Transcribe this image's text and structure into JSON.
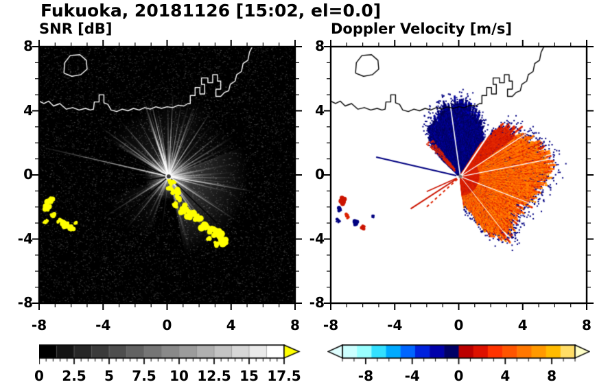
{
  "figure_title": "Fukuoka, 20181126 [15:02, el=0.0]",
  "header": {
    "station": "Fukuoka",
    "date": "20181126",
    "time": "15:02",
    "elevation": "0.0"
  },
  "chart_data": [
    {
      "type": "heatmap",
      "id": "snr",
      "title": "SNR [dB]",
      "description": "Radar PPI scan of signal-to-noise ratio in dB. Black background with white radial beams emanating from the radar at the origin; yellow patches are saturated echoes above 17.5 dB; white coastline of Fukuoka bay drawn across the upper half.",
      "xlim": [
        -8,
        8
      ],
      "ylim": [
        -8,
        8
      ],
      "xticks": [
        -8,
        -4,
        0,
        4,
        8
      ],
      "xtick_labels": [
        "-8",
        "-4",
        "0",
        "4",
        "8"
      ],
      "yticks": [
        -8,
        -4,
        0,
        4,
        8
      ],
      "ytick_labels": [
        "-8",
        "-4",
        "0",
        "4",
        "8"
      ],
      "minor_tick_step": 1,
      "background": "#000000",
      "coast_color": "#ffffff",
      "radar_center": [
        0.1,
        -0.1
      ],
      "colorbar": {
        "min": 0,
        "max": 17.5,
        "tick_values": [
          0,
          2.5,
          5,
          7.5,
          10,
          12.5,
          15,
          17.5
        ],
        "tick_labels": [
          "0",
          "2.5",
          "5",
          "7.5",
          "10",
          "12.5",
          "15",
          "17.5"
        ],
        "minor_step": 0.5,
        "over_arrow_color": "#ffff00",
        "colors": [
          "#000000",
          "#141414",
          "#272727",
          "#3b3b3b",
          "#4e4e4e",
          "#626262",
          "#757575",
          "#898989",
          "#9c9c9c",
          "#b0b0b0",
          "#c3c3c3",
          "#d7d7d7",
          "#eaeaea",
          "#ffffff"
        ]
      },
      "center_glow": {
        "r": 1.5,
        "alpha": 0.5
      },
      "glow_fan": {
        "from": -78,
        "to": 22,
        "r": 5.0,
        "alpha": 0.3
      },
      "haze_fans": [
        {
          "from": 95,
          "to": 150,
          "r": 4.5,
          "alpha": 0.14
        },
        {
          "from": 60,
          "to": 95,
          "r": 5.2,
          "alpha": 0.12
        },
        {
          "from": 20,
          "to": 60,
          "r": 4.6,
          "alpha": 0.1
        },
        {
          "from": 200,
          "to": 252,
          "r": 4.2,
          "alpha": 0.08
        }
      ],
      "beam_sectors": [
        {
          "from": 95,
          "to": 150,
          "count": 30,
          "rmin": 1.2,
          "rmax": 5.4,
          "alpha": 0.8
        },
        {
          "from": 60,
          "to": 95,
          "count": 16,
          "rmin": 1.2,
          "rmax": 6.0,
          "alpha": 0.65
        },
        {
          "from": 18,
          "to": 60,
          "count": 14,
          "rmin": 1.0,
          "rmax": 5.0,
          "alpha": 0.5
        },
        {
          "from": -75,
          "to": 18,
          "count": 34,
          "rmin": 1.2,
          "rmax": 5.4,
          "alpha": 0.7
        },
        {
          "from": 150,
          "to": 200,
          "count": 9,
          "rmin": 0.8,
          "rmax": 4.2,
          "alpha": 0.35
        },
        {
          "from": 200,
          "to": 268,
          "count": 12,
          "rmin": 0.8,
          "rmax": 4.6,
          "alpha": 0.4
        }
      ],
      "long_rays": [
        {
          "az": 167,
          "r": 8.3,
          "alpha": 0.95
        },
        {
          "az": 144,
          "r": 5.3,
          "alpha": 0.9
        },
        {
          "az": 131,
          "r": 4.6,
          "alpha": 0.85
        },
        {
          "az": 108,
          "r": 5.0,
          "alpha": 0.95
        },
        {
          "az": 87,
          "r": 5.3,
          "alpha": 0.9
        },
        {
          "az": 70,
          "r": 4.6,
          "alpha": 0.8
        },
        {
          "az": 57,
          "r": 5.0,
          "alpha": 0.85
        },
        {
          "az": 40,
          "r": 4.4,
          "alpha": 0.7
        },
        {
          "az": 212,
          "r": 4.8,
          "alpha": 0.6
        },
        {
          "az": 231,
          "r": 4.3,
          "alpha": 0.55
        },
        {
          "az": -10,
          "r": 5.6,
          "alpha": 0.9
        },
        {
          "az": -33,
          "r": 5.2,
          "alpha": 0.8
        },
        {
          "az": -56,
          "r": 4.9,
          "alpha": 0.8
        }
      ],
      "dark_rays": [
        {
          "az": 157,
          "r": 6.5
        },
        {
          "az": 189,
          "r": 5.2
        },
        {
          "az": -44,
          "r": 4.2
        },
        {
          "az": 222,
          "r": 4.0
        }
      ],
      "saturated_color": "#ffff00",
      "saturated_patches": [
        [
          0.35,
          -0.45,
          0.18
        ],
        [
          0.2,
          -0.8,
          0.2
        ],
        [
          0.5,
          -1.1,
          0.25
        ],
        [
          0.75,
          -1.45,
          0.22
        ],
        [
          0.55,
          -1.8,
          0.18
        ],
        [
          1.0,
          -2.1,
          0.28
        ],
        [
          1.45,
          -2.45,
          0.3
        ],
        [
          1.9,
          -2.75,
          0.26
        ],
        [
          2.35,
          -3.1,
          0.3
        ],
        [
          2.8,
          -3.35,
          0.28
        ],
        [
          3.2,
          -3.7,
          0.34
        ],
        [
          3.55,
          -4.15,
          0.3
        ],
        [
          3.1,
          -4.35,
          0.2
        ],
        [
          2.65,
          -3.95,
          0.16
        ],
        [
          -7.35,
          -1.6,
          0.28
        ],
        [
          -7.5,
          -2.1,
          0.22
        ],
        [
          -7.15,
          -2.5,
          0.2
        ],
        [
          -6.7,
          -2.9,
          0.16
        ],
        [
          -6.35,
          -3.1,
          0.26
        ],
        [
          -5.95,
          -3.35,
          0.2
        ],
        [
          -5.75,
          -2.95,
          0.13
        ],
        [
          -7.6,
          -2.9,
          0.14
        ]
      ]
    },
    {
      "type": "heatmap",
      "id": "doppler",
      "title": "Doppler Velocity [m/s]",
      "description": "Radar PPI scan of Doppler velocity in m/s on white background. Dark blue wedge of negative velocities north of the radar, red/orange region of positive velocities east and southeast reaching about +8 m/s; black coastline overlay; small red and blue echo patches at far left.",
      "xlim": [
        -8,
        8
      ],
      "ylim": [
        -8,
        8
      ],
      "xticks": [
        -8,
        -4,
        0,
        4,
        8
      ],
      "xtick_labels": [
        "-8",
        "-4",
        "0",
        "4",
        "8"
      ],
      "yticks": [
        -8,
        -4,
        0,
        4,
        8
      ],
      "ytick_labels": [
        "-8",
        "-4",
        "0",
        "4",
        "8"
      ],
      "minor_tick_step": 1,
      "background": "#ffffff",
      "coast_color": "#000000",
      "radar_center": [
        0.1,
        -0.1
      ],
      "colorbar": {
        "min": -10,
        "max": 10,
        "tick_values": [
          -8,
          -4,
          0,
          4,
          8
        ],
        "tick_labels": [
          "-8",
          "-4",
          "0",
          "4",
          "8"
        ],
        "minor_step": 1,
        "under_arrow_color": "#e0ffff",
        "over_arrow_color": "#ffffc8",
        "colors": [
          "#ccffff",
          "#99ffff",
          "#33e0ff",
          "#00aaff",
          "#0066ff",
          "#0022dd",
          "#0000aa",
          "#000066",
          "#bb0000",
          "#dd1100",
          "#ff3300",
          "#ff5500",
          "#ff7700",
          "#ff9900",
          "#ffbb00",
          "#ffdd66"
        ]
      },
      "blue_region": {
        "az_profile": [
          [
            54,
            2.2
          ],
          [
            64,
            3.0
          ],
          [
            75,
            3.9
          ],
          [
            85,
            4.4
          ],
          [
            95,
            4.4
          ],
          [
            105,
            4.1
          ],
          [
            115,
            3.8
          ],
          [
            125,
            3.4
          ],
          [
            132,
            2.6
          ],
          [
            137,
            1.5
          ]
        ],
        "colors": [
          "#000066",
          "#000080",
          "#00009b",
          "#000055"
        ],
        "rim_color": "#000080"
      },
      "red_region": {
        "az_profile": [
          [
            -84,
            1.4
          ],
          [
            -74,
            2.2
          ],
          [
            -64,
            3.8
          ],
          [
            -54,
            4.6
          ],
          [
            -44,
            4.4
          ],
          [
            -34,
            4.0
          ],
          [
            -22,
            4.2
          ],
          [
            -10,
            4.8
          ],
          [
            0,
            5.3
          ],
          [
            10,
            5.6
          ],
          [
            20,
            5.2
          ],
          [
            30,
            4.7
          ],
          [
            40,
            4.3
          ],
          [
            50,
            4.1
          ],
          [
            58,
            2.4
          ]
        ],
        "inner_colors": [
          "#cc1400",
          "#dd2200",
          "#e83000"
        ],
        "outer_colors": [
          "#ff6600",
          "#ff7d00",
          "#ff5500",
          "#ff8f00"
        ],
        "rim_color": "#000080"
      },
      "fringe": {
        "from": 127,
        "to": 136,
        "r": 3.0,
        "color": "#dd2200"
      },
      "white_gaps": [
        {
          "az": 56,
          "r": 3.4,
          "w": 2.2
        },
        {
          "az": 98,
          "r": 4.6,
          "w": 1.6
        },
        {
          "az": 11,
          "r": 5.7,
          "w": 1.4
        },
        {
          "az": -21,
          "r": 4.7,
          "w": 1.2
        },
        {
          "az": 33,
          "r": 5.0,
          "w": 1.2
        },
        {
          "az": -52,
          "r": 4.4,
          "w": 1.0
        }
      ],
      "lines": [
        {
          "az": 167,
          "r": 5.4,
          "color": "#000080",
          "width": 2
        },
        {
          "az": 213,
          "r": 3.7,
          "color": "#cc1400",
          "width": 2
        },
        {
          "az": 222,
          "r": 2.9,
          "color": "#dd2200",
          "width": 2,
          "dash": [
            4,
            4
          ]
        },
        {
          "az": 204,
          "r": 2.3,
          "color": "#cc1400",
          "width": 1.5
        }
      ],
      "patches": [
        [
          -7.3,
          -1.65,
          0.22,
          "#cc1400"
        ],
        [
          -7.45,
          -2.15,
          0.18,
          "#000080"
        ],
        [
          -7.0,
          -2.55,
          0.16,
          "#dd2200"
        ],
        [
          -6.4,
          -3.0,
          0.2,
          "#000080"
        ],
        [
          -6.0,
          -3.3,
          0.16,
          "#cc1400"
        ],
        [
          -5.35,
          -2.6,
          0.1,
          "#000080"
        ],
        [
          -7.55,
          -2.85,
          0.12,
          "#000080"
        ]
      ]
    }
  ],
  "coastline": {
    "main": [
      [
        -8.0,
        4.6
      ],
      [
        -7.7,
        4.45
      ],
      [
        -7.4,
        4.6
      ],
      [
        -7.1,
        4.3
      ],
      [
        -6.7,
        4.45
      ],
      [
        -6.3,
        4.1
      ],
      [
        -5.9,
        4.2
      ],
      [
        -5.5,
        4.05
      ],
      [
        -5.1,
        4.15
      ],
      [
        -4.8,
        4.05
      ],
      [
        -4.6,
        4.1
      ],
      [
        -4.55,
        4.55
      ],
      [
        -4.25,
        4.55
      ],
      [
        -4.25,
        5.0
      ],
      [
        -3.95,
        5.0
      ],
      [
        -3.95,
        4.5
      ],
      [
        -3.7,
        4.4
      ],
      [
        -3.5,
        4.05
      ],
      [
        -3.15,
        3.95
      ],
      [
        -2.8,
        4.1
      ],
      [
        -2.45,
        4.0
      ],
      [
        -2.1,
        4.15
      ],
      [
        -1.75,
        4.05
      ],
      [
        -1.4,
        4.2
      ],
      [
        -1.05,
        4.1
      ],
      [
        -0.7,
        4.25
      ],
      [
        -0.35,
        4.15
      ],
      [
        0.0,
        4.25
      ],
      [
        0.35,
        4.2
      ],
      [
        0.7,
        4.35
      ],
      [
        1.05,
        4.3
      ],
      [
        1.3,
        4.45
      ],
      [
        1.45,
        4.45
      ],
      [
        1.45,
        4.95
      ],
      [
        1.75,
        4.95
      ],
      [
        1.75,
        5.45
      ],
      [
        2.05,
        5.45
      ],
      [
        2.05,
        5.05
      ],
      [
        2.35,
        5.05
      ],
      [
        2.35,
        5.65
      ],
      [
        2.15,
        5.65
      ],
      [
        2.15,
        6.05
      ],
      [
        2.55,
        6.05
      ],
      [
        2.55,
        5.75
      ],
      [
        2.85,
        5.75
      ],
      [
        2.85,
        6.25
      ],
      [
        3.15,
        6.25
      ],
      [
        3.15,
        5.85
      ],
      [
        3.35,
        5.85
      ],
      [
        3.35,
        5.35
      ],
      [
        3.05,
        5.35
      ],
      [
        3.05,
        4.9
      ],
      [
        3.35,
        4.9
      ],
      [
        3.6,
        5.15
      ],
      [
        3.85,
        5.25
      ],
      [
        3.95,
        5.65
      ],
      [
        4.25,
        5.85
      ],
      [
        4.35,
        6.25
      ],
      [
        4.65,
        6.45
      ],
      [
        4.75,
        6.95
      ],
      [
        5.05,
        7.15
      ],
      [
        5.15,
        7.65
      ],
      [
        5.35,
        8.05
      ]
    ],
    "island": [
      [
        -6.45,
        6.35
      ],
      [
        -5.95,
        6.15
      ],
      [
        -5.4,
        6.25
      ],
      [
        -5.0,
        6.6
      ],
      [
        -5.05,
        7.15
      ],
      [
        -5.45,
        7.5
      ],
      [
        -6.05,
        7.45
      ],
      [
        -6.4,
        7.0
      ],
      [
        -6.45,
        6.35
      ]
    ]
  }
}
